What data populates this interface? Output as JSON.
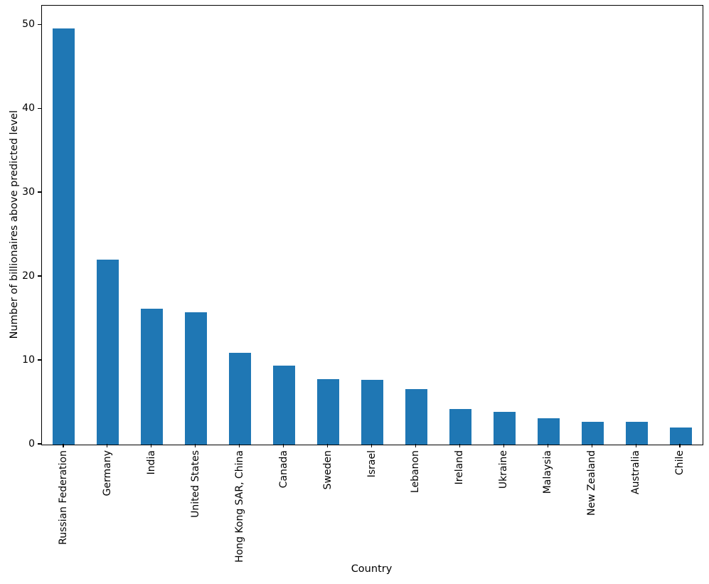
{
  "chart_data": {
    "type": "bar",
    "title": "",
    "xlabel": "Country",
    "ylabel": "Number of billionaires above predicted level",
    "categories": [
      "Russian Federation",
      "Germany",
      "India",
      "United States",
      "Hong Kong SAR, China",
      "Canada",
      "Sweden",
      "Israel",
      "Lebanon",
      "Ireland",
      "Ukraine",
      "Malaysia",
      "New Zealand",
      "Australia",
      "Chile"
    ],
    "values": [
      49.6,
      22.0,
      16.2,
      15.8,
      10.9,
      9.4,
      7.8,
      7.7,
      6.6,
      4.2,
      3.9,
      3.1,
      2.7,
      2.7,
      2.0
    ],
    "yticks": [
      0,
      10,
      20,
      30,
      40,
      50
    ],
    "ylim": [
      0,
      52.3
    ],
    "xtick_rotation": 90,
    "bar_width_fraction": 0.5,
    "bar_color": "#1f77b4",
    "axis_color": "#000000",
    "background_color": "#ffffff",
    "grid": false,
    "legend": null
  }
}
